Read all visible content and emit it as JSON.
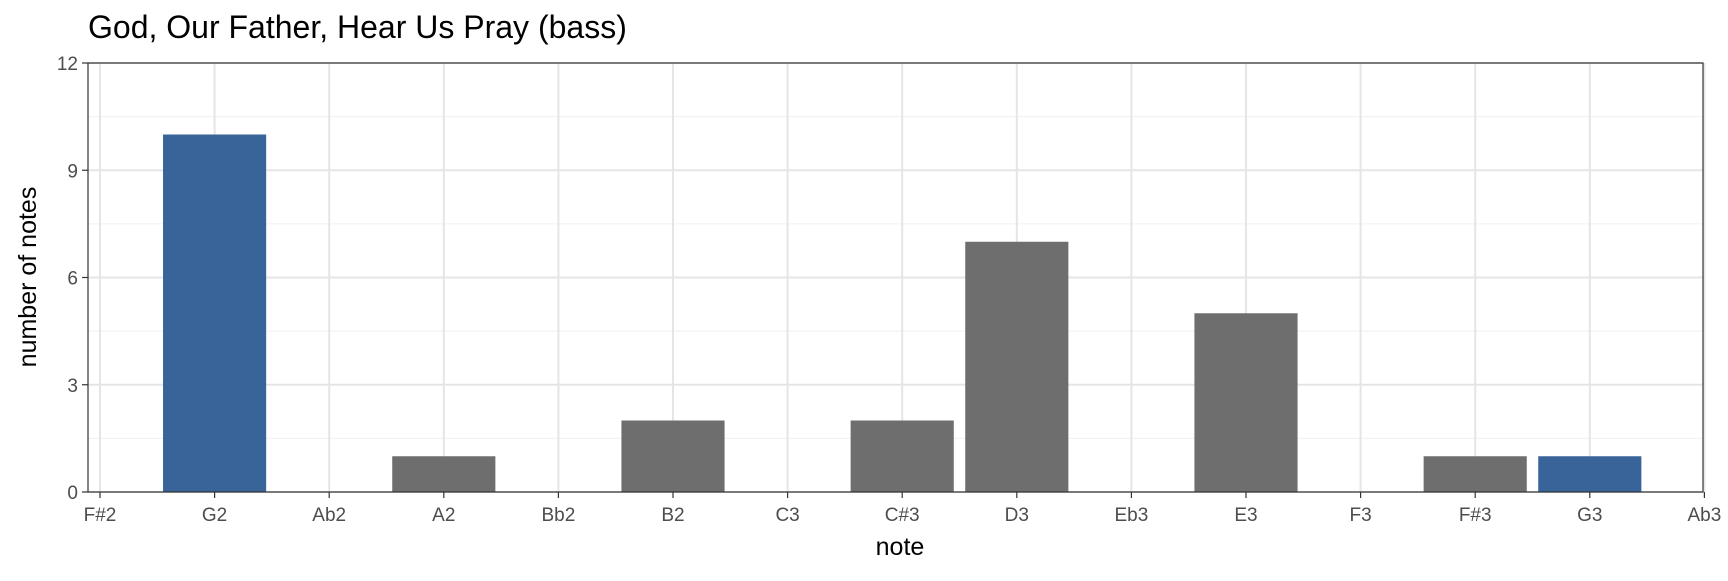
{
  "chart_data": {
    "type": "bar",
    "title": "God, Our Father, Hear Us Pray (bass)",
    "xlabel": "note",
    "ylabel": "number of notes",
    "categories": [
      "F#2",
      "G2",
      "Ab2",
      "A2",
      "Bb2",
      "B2",
      "C3",
      "C#3",
      "D3",
      "Eb3",
      "E3",
      "F3",
      "F#3",
      "G3",
      "Ab3"
    ],
    "values": [
      0,
      10,
      0,
      1,
      0,
      2,
      0,
      2,
      7,
      0,
      5,
      0,
      1,
      1,
      0
    ],
    "highlighted": [
      false,
      true,
      false,
      false,
      false,
      false,
      false,
      false,
      false,
      false,
      false,
      false,
      false,
      true,
      false
    ],
    "yticks": [
      0,
      3,
      6,
      9,
      12
    ],
    "ylim": [
      0,
      12
    ],
    "grid": true,
    "legend": "none",
    "colors": {
      "bar": "#6e6e6e",
      "highlight": "#386499",
      "grid_major": "#e5e5e5",
      "grid_minor": "#f0f0f0",
      "panel_border": "#333333"
    }
  }
}
